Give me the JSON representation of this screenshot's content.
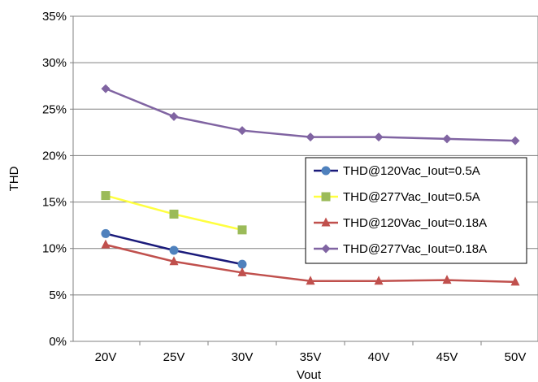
{
  "chart_data": {
    "type": "line",
    "categories": [
      "20V",
      "25V",
      "30V",
      "35V",
      "40V",
      "45V",
      "50V"
    ],
    "xlabel": "Vout",
    "ylabel": "THD",
    "ylim": [
      0,
      35
    ],
    "yticks": [
      "0%",
      "5%",
      "10%",
      "15%",
      "20%",
      "25%",
      "30%",
      "35%"
    ],
    "grid": "horizontal",
    "legend_position": "right",
    "series": [
      {
        "name": "THD@120Vac_Iout=0.5A",
        "color": "#1a1a7a",
        "marker": "circle",
        "marker_color": "#4f81bd",
        "values": [
          11.6,
          9.8,
          8.3,
          null,
          null,
          null,
          null
        ]
      },
      {
        "name": "THD@277Vac_Iout=0.5A",
        "color": "#ffff40",
        "marker": "square",
        "marker_color": "#9bbb59",
        "values": [
          15.7,
          13.7,
          12.0,
          null,
          null,
          null,
          null
        ]
      },
      {
        "name": "THD@120Vac_Iout=0.18A",
        "color": "#c0504d",
        "marker": "triangle",
        "marker_color": "#c0504d",
        "values": [
          10.4,
          8.6,
          7.4,
          6.5,
          6.5,
          6.6,
          6.4
        ]
      },
      {
        "name": "THD@277Vac_Iout=0.18A",
        "color": "#8064a2",
        "marker": "diamond",
        "marker_color": "#8064a2",
        "values": [
          27.2,
          24.2,
          22.7,
          22.0,
          22.0,
          21.8,
          21.6
        ]
      }
    ]
  }
}
